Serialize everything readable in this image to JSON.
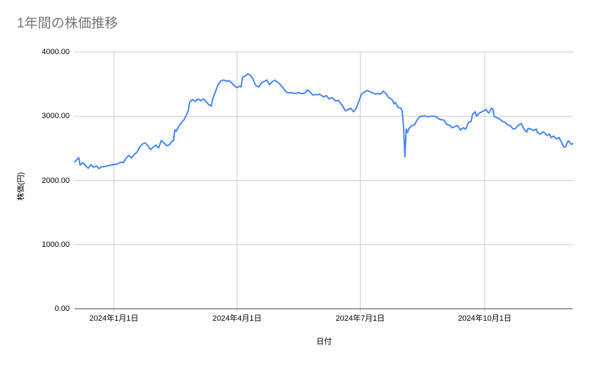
{
  "chart_data": {
    "type": "line",
    "title": "1年間の株価推移",
    "xlabel": "日付",
    "ylabel": "株価(円)",
    "legend": "none",
    "grid": true,
    "x_encoding": "days since 2024-01-01",
    "x_range": [
      -29,
      339
    ],
    "y_range": [
      0,
      4000
    ],
    "x_ticks": {
      "days": [
        0,
        91,
        182,
        274
      ],
      "labels": [
        "2024年1月1日",
        "2024年4月1日",
        "2024年7月1日",
        "2024年10月1日"
      ]
    },
    "y_ticks": {
      "values": [
        0,
        1000,
        2000,
        3000,
        4000
      ],
      "labels": [
        "0.00",
        "1000.00",
        "2000.00",
        "3000.00",
        "4000.00"
      ]
    },
    "points": [
      [
        -29,
        2290
      ],
      [
        -27,
        2330
      ],
      [
        -26,
        2355
      ],
      [
        -25,
        2240
      ],
      [
        -23,
        2275
      ],
      [
        -21,
        2230
      ],
      [
        -19,
        2190
      ],
      [
        -17,
        2245
      ],
      [
        -15,
        2205
      ],
      [
        -13,
        2225
      ],
      [
        -11,
        2185
      ],
      [
        -9,
        2210
      ],
      [
        -7,
        2215
      ],
      [
        -5,
        2225
      ],
      [
        -3,
        2235
      ],
      [
        -1,
        2245
      ],
      [
        1,
        2250
      ],
      [
        3,
        2260
      ],
      [
        5,
        2285
      ],
      [
        7,
        2275
      ],
      [
        9,
        2345
      ],
      [
        11,
        2390
      ],
      [
        13,
        2350
      ],
      [
        15,
        2400
      ],
      [
        17,
        2440
      ],
      [
        19,
        2520
      ],
      [
        21,
        2565
      ],
      [
        23,
        2585
      ],
      [
        25,
        2545
      ],
      [
        27,
        2480
      ],
      [
        29,
        2515
      ],
      [
        31,
        2550
      ],
      [
        33,
        2505
      ],
      [
        35,
        2620
      ],
      [
        37,
        2585
      ],
      [
        39,
        2540
      ],
      [
        41,
        2555
      ],
      [
        43,
        2610
      ],
      [
        44,
        2615
      ],
      [
        45,
        2790
      ],
      [
        46,
        2765
      ],
      [
        48,
        2845
      ],
      [
        50,
        2900
      ],
      [
        52,
        2950
      ],
      [
        54,
        3040
      ],
      [
        55,
        3090
      ],
      [
        56,
        3220
      ],
      [
        58,
        3260
      ],
      [
        60,
        3230
      ],
      [
        62,
        3270
      ],
      [
        64,
        3240
      ],
      [
        66,
        3270
      ],
      [
        68,
        3230
      ],
      [
        70,
        3180
      ],
      [
        72,
        3160
      ],
      [
        73,
        3270
      ],
      [
        75,
        3380
      ],
      [
        77,
        3490
      ],
      [
        79,
        3550
      ],
      [
        81,
        3565
      ],
      [
        83,
        3545
      ],
      [
        85,
        3555
      ],
      [
        87,
        3520
      ],
      [
        89,
        3475
      ],
      [
        91,
        3445
      ],
      [
        93,
        3470
      ],
      [
        94,
        3455
      ],
      [
        95,
        3600
      ],
      [
        97,
        3630
      ],
      [
        99,
        3660
      ],
      [
        101,
        3635
      ],
      [
        103,
        3570
      ],
      [
        104,
        3510
      ],
      [
        105,
        3475
      ],
      [
        107,
        3455
      ],
      [
        109,
        3520
      ],
      [
        111,
        3540
      ],
      [
        113,
        3565
      ],
      [
        115,
        3490
      ],
      [
        117,
        3540
      ],
      [
        119,
        3560
      ],
      [
        121,
        3530
      ],
      [
        123,
        3495
      ],
      [
        125,
        3440
      ],
      [
        127,
        3385
      ],
      [
        129,
        3360
      ],
      [
        131,
        3370
      ],
      [
        133,
        3355
      ],
      [
        135,
        3360
      ],
      [
        137,
        3365
      ],
      [
        139,
        3350
      ],
      [
        141,
        3360
      ],
      [
        143,
        3410
      ],
      [
        145,
        3375
      ],
      [
        147,
        3330
      ],
      [
        149,
        3340
      ],
      [
        150,
        3332
      ],
      [
        152,
        3345
      ],
      [
        155,
        3300
      ],
      [
        157,
        3322
      ],
      [
        159,
        3268
      ],
      [
        161,
        3290
      ],
      [
        164,
        3235
      ],
      [
        166,
        3246
      ],
      [
        169,
        3160
      ],
      [
        171,
        3085
      ],
      [
        173,
        3105
      ],
      [
        175,
        3125
      ],
      [
        177,
        3070
      ],
      [
        179,
        3120
      ],
      [
        181,
        3235
      ],
      [
        183,
        3345
      ],
      [
        185,
        3377
      ],
      [
        187,
        3399
      ],
      [
        189,
        3385
      ],
      [
        191,
        3366
      ],
      [
        193,
        3345
      ],
      [
        195,
        3355
      ],
      [
        197,
        3345
      ],
      [
        199,
        3388
      ],
      [
        201,
        3355
      ],
      [
        203,
        3290
      ],
      [
        205,
        3268
      ],
      [
        206,
        3246
      ],
      [
        207,
        3190
      ],
      [
        208,
        3215
      ],
      [
        210,
        3137
      ],
      [
        212,
        3126
      ],
      [
        213,
        3082
      ],
      [
        214,
        2830
      ],
      [
        215,
        2372
      ],
      [
        216,
        2800
      ],
      [
        217,
        2745
      ],
      [
        218,
        2810
      ],
      [
        220,
        2852
      ],
      [
        222,
        2865
      ],
      [
        224,
        2940
      ],
      [
        226,
        2995
      ],
      [
        228,
        3000
      ],
      [
        230,
        3005
      ],
      [
        232,
        2990
      ],
      [
        234,
        3000
      ],
      [
        236,
        3000
      ],
      [
        238,
        2995
      ],
      [
        240,
        2960
      ],
      [
        242,
        2945
      ],
      [
        244,
        2940
      ],
      [
        246,
        2870
      ],
      [
        248,
        2860
      ],
      [
        250,
        2820
      ],
      [
        252,
        2840
      ],
      [
        254,
        2855
      ],
      [
        256,
        2785
      ],
      [
        258,
        2820
      ],
      [
        260,
        2800
      ],
      [
        262,
        2905
      ],
      [
        264,
        2920
      ],
      [
        265,
        3030
      ],
      [
        267,
        3070
      ],
      [
        268,
        3000
      ],
      [
        270,
        3050
      ],
      [
        272,
        3070
      ],
      [
        274,
        3090
      ],
      [
        275,
        3105
      ],
      [
        276,
        3070
      ],
      [
        277,
        3050
      ],
      [
        279,
        3125
      ],
      [
        280,
        3110
      ],
      [
        281,
        2995
      ],
      [
        283,
        2975
      ],
      [
        285,
        2960
      ],
      [
        287,
        2920
      ],
      [
        289,
        2905
      ],
      [
        291,
        2865
      ],
      [
        293,
        2850
      ],
      [
        295,
        2800
      ],
      [
        297,
        2812
      ],
      [
        299,
        2865
      ],
      [
        301,
        2885
      ],
      [
        303,
        2800
      ],
      [
        305,
        2755
      ],
      [
        306,
        2810
      ],
      [
        308,
        2800
      ],
      [
        310,
        2775
      ],
      [
        312,
        2800
      ],
      [
        313,
        2745
      ],
      [
        315,
        2720
      ],
      [
        317,
        2755
      ],
      [
        318,
        2745
      ],
      [
        320,
        2700
      ],
      [
        322,
        2720
      ],
      [
        323,
        2665
      ],
      [
        325,
        2690
      ],
      [
        327,
        2645
      ],
      [
        329,
        2665
      ],
      [
        330,
        2620
      ],
      [
        331,
        2590
      ],
      [
        332,
        2530
      ],
      [
        333,
        2515
      ],
      [
        334,
        2530
      ],
      [
        335,
        2595
      ],
      [
        336,
        2615
      ],
      [
        338,
        2560
      ],
      [
        339,
        2575
      ]
    ],
    "colors": {
      "line": "#4285f4",
      "gridline": "#cccccc",
      "axis_line": "#424242",
      "title": "#757575",
      "tick_text": "#000000",
      "background": "#ffffff"
    }
  }
}
